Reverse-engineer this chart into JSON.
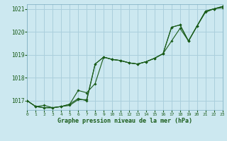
{
  "title": "Graphe pression niveau de la mer (hPa)",
  "background_color": "#cce8f0",
  "grid_color": "#aacfdc",
  "line_color": "#1a5c1a",
  "xlim": [
    0,
    23
  ],
  "ylim": [
    1016.6,
    1021.2
  ],
  "yticks": [
    1017,
    1018,
    1019,
    1020,
    1021
  ],
  "xticks": [
    0,
    1,
    2,
    3,
    4,
    5,
    6,
    7,
    8,
    9,
    10,
    11,
    12,
    13,
    14,
    15,
    16,
    17,
    18,
    19,
    20,
    21,
    22,
    23
  ],
  "series1": [
    1017.0,
    1016.75,
    1016.8,
    1016.7,
    1016.75,
    1016.8,
    1017.05,
    1017.05,
    1018.6,
    1018.9,
    1018.8,
    1018.75,
    1018.65,
    1018.6,
    1018.7,
    1018.85,
    1019.05,
    1019.6,
    1020.15,
    1019.6,
    1020.25,
    1020.85,
    1021.0,
    1021.05
  ],
  "series2": [
    1017.0,
    1016.75,
    1016.7,
    1016.7,
    1016.75,
    1016.85,
    1017.45,
    1017.35,
    1017.75,
    1018.9,
    1018.8,
    1018.75,
    1018.65,
    1018.6,
    1018.7,
    1018.85,
    1019.05,
    1020.2,
    1020.3,
    1019.6,
    1020.25,
    1020.9,
    1021.0,
    1021.1
  ],
  "series3": [
    1017.0,
    1016.75,
    1016.7,
    1016.7,
    1016.75,
    1016.85,
    1017.1,
    1017.0,
    1018.6,
    1018.9,
    1018.8,
    1018.75,
    1018.65,
    1018.6,
    1018.7,
    1018.85,
    1019.05,
    1020.2,
    1020.3,
    1019.6,
    1020.25,
    1020.9,
    1021.0,
    1021.1
  ]
}
